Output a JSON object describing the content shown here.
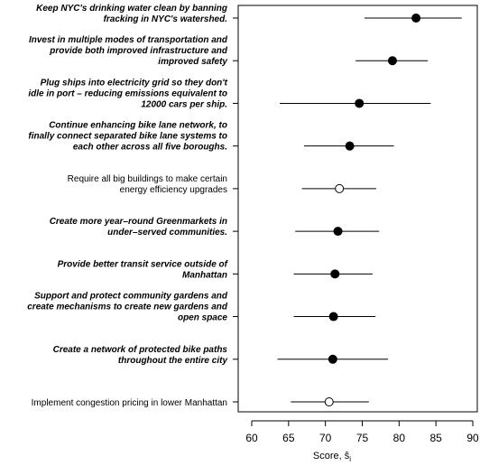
{
  "chart_data": {
    "type": "scatter",
    "subtype": "dot-plot-with-interval",
    "xlabel": "Score, ŝ",
    "xlabel_subscript": "i",
    "xlim": [
      58,
      90
    ],
    "xticks": [
      60,
      65,
      70,
      75,
      80,
      85,
      90
    ],
    "grid": false,
    "legend": "none",
    "marker_styles": {
      "filled": "#000000",
      "open": "#ffffff"
    },
    "items": [
      {
        "label": [
          "Keep NYC's drinking water clean by banning",
          "fracking in NYC's watershed."
        ],
        "bold": true,
        "score": 82.3,
        "low": 75.3,
        "high": 88.5,
        "marker": "filled"
      },
      {
        "label": [
          "Invest in multiple modes of transportation and",
          "provide both improved infrastructure and",
          "improved safety"
        ],
        "bold": true,
        "score": 79.1,
        "low": 74.1,
        "high": 83.9,
        "marker": "filled"
      },
      {
        "label": [
          "Plug ships into electricity grid so they don't",
          "idle in port – reducing emissions equivalent to",
          "12000 cars per ship."
        ],
        "bold": true,
        "score": 74.6,
        "low": 63.8,
        "high": 84.3,
        "marker": "filled"
      },
      {
        "label": [
          "Continue enhancing bike lane network, to",
          "finally connect separated bike lane systems to",
          "each other across all five boroughs."
        ],
        "bold": true,
        "score": 73.3,
        "low": 67.1,
        "high": 79.3,
        "marker": "filled"
      },
      {
        "label": [
          "Require all big buildings to make certain",
          "energy efficiency upgrades"
        ],
        "bold": false,
        "score": 71.9,
        "low": 66.8,
        "high": 76.9,
        "marker": "open"
      },
      {
        "label": [
          "Create more year–round Greenmarkets in",
          "under–served communities."
        ],
        "bold": true,
        "score": 71.7,
        "low": 65.9,
        "high": 77.3,
        "marker": "filled"
      },
      {
        "label": [
          "Provide better transit service outside of",
          "Manhattan"
        ],
        "bold": true,
        "score": 71.3,
        "low": 65.7,
        "high": 76.4,
        "marker": "filled"
      },
      {
        "label": [
          "Support and protect community gardens and",
          "create mechanisms to create new gardens and",
          "open space"
        ],
        "bold": true,
        "score": 71.1,
        "low": 65.7,
        "high": 76.8,
        "marker": "filled"
      },
      {
        "label": [
          "Create a network of protected bike paths",
          "throughout the entire city"
        ],
        "bold": true,
        "score": 71.0,
        "low": 63.5,
        "high": 78.5,
        "marker": "filled"
      },
      {
        "label": [
          "Implement congestion pricing in lower Manhattan"
        ],
        "bold": false,
        "score": 70.5,
        "low": 65.3,
        "high": 75.9,
        "marker": "open"
      }
    ]
  }
}
